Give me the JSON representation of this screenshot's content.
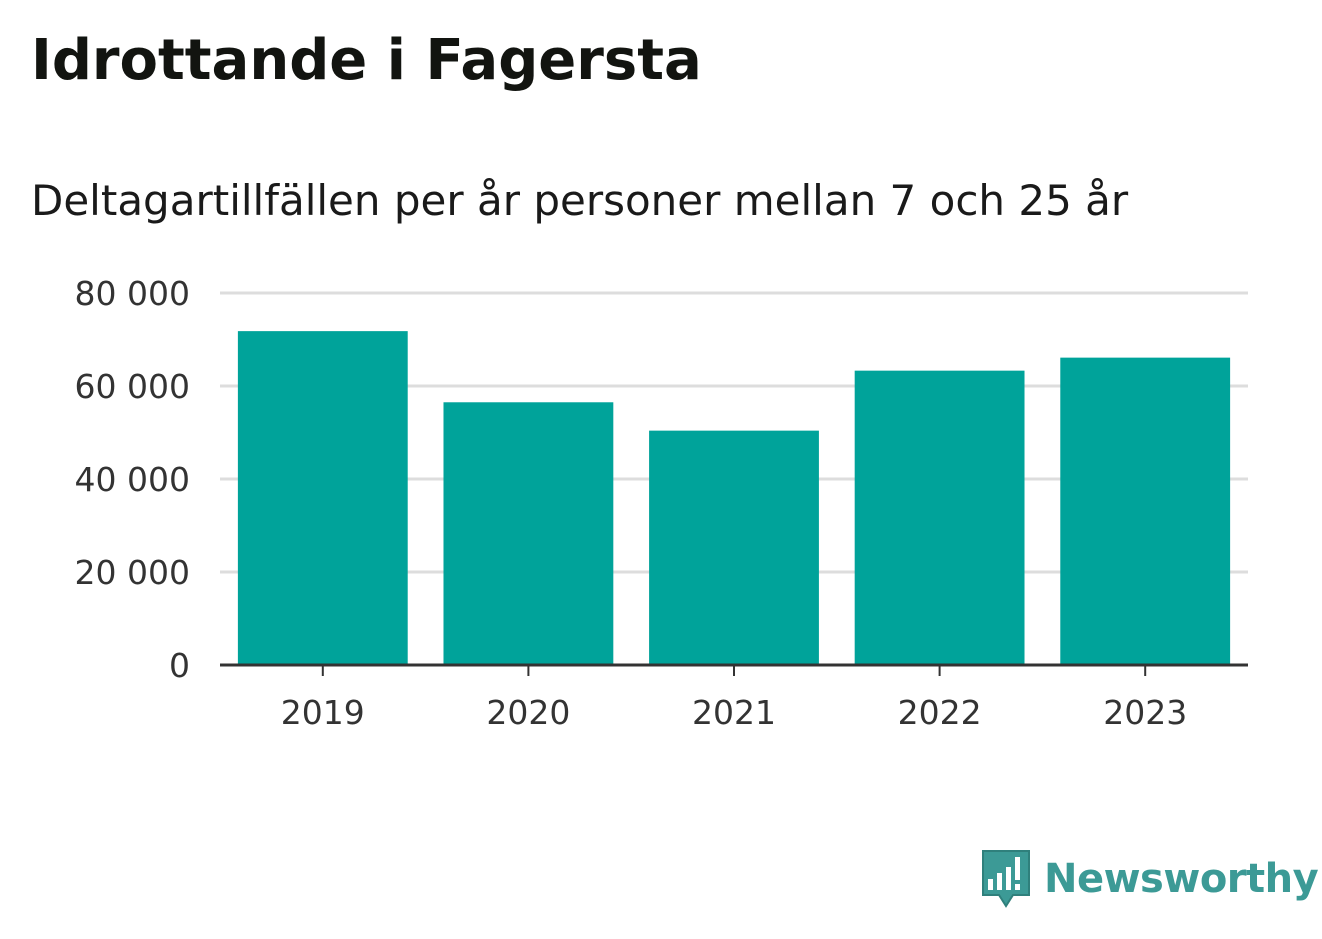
{
  "title": "Idrottande i Fagersta",
  "subtitle": "Deltagartillfällen per år personer mellan 7 och 25 år",
  "brand": {
    "name": "Newsworthy",
    "icon": "newsworthy-logo-icon",
    "color": "#3c9a96"
  },
  "colors": {
    "bar": "#00a39a",
    "grid": "#dddddd",
    "axis": "#333333"
  },
  "chart_data": {
    "type": "bar",
    "title": "Idrottande i Fagersta",
    "subtitle": "Deltagartillfällen per år personer mellan 7 och 25 år",
    "xlabel": "",
    "ylabel": "",
    "categories": [
      "2019",
      "2020",
      "2021",
      "2022",
      "2023"
    ],
    "values": [
      71800,
      56500,
      50400,
      63300,
      66100
    ],
    "ylim": [
      0,
      80000
    ],
    "yticks": [
      0,
      20000,
      40000,
      60000,
      80000
    ],
    "ytick_labels": [
      "0",
      "20 000",
      "40 000",
      "60 000",
      "80 000"
    ],
    "grid": true,
    "legend": "none"
  }
}
